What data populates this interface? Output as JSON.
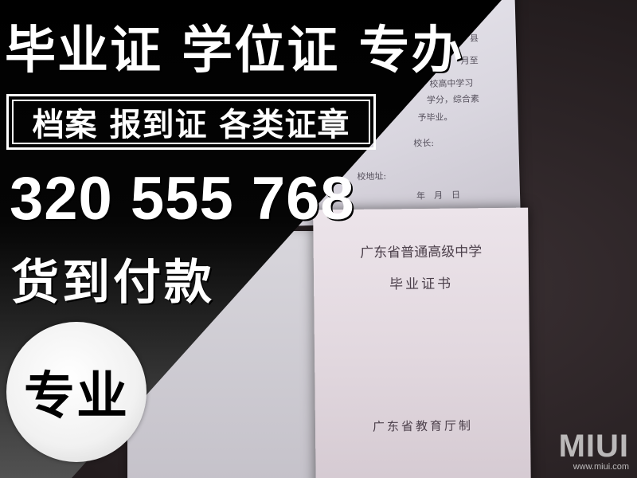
{
  "headline": "毕业证 学位证 专办",
  "subline": "档案 报到证 各类证章",
  "phone": "320 555 768",
  "payment": "货到付款",
  "badge": "专业",
  "document_top": {
    "lines": [
      "县",
      "月至",
      "校高中学习",
      "学分，综合素",
      "予毕业。",
      "校长:",
      "校地址:",
      "年　月　日"
    ]
  },
  "document_bottom": {
    "issuer_title": "广东省普通高级中学",
    "doc_title": "毕业证书",
    "footer": "广东省教育厅制"
  },
  "watermark": {
    "brand": "MIUI",
    "url": "www.miui.com"
  }
}
